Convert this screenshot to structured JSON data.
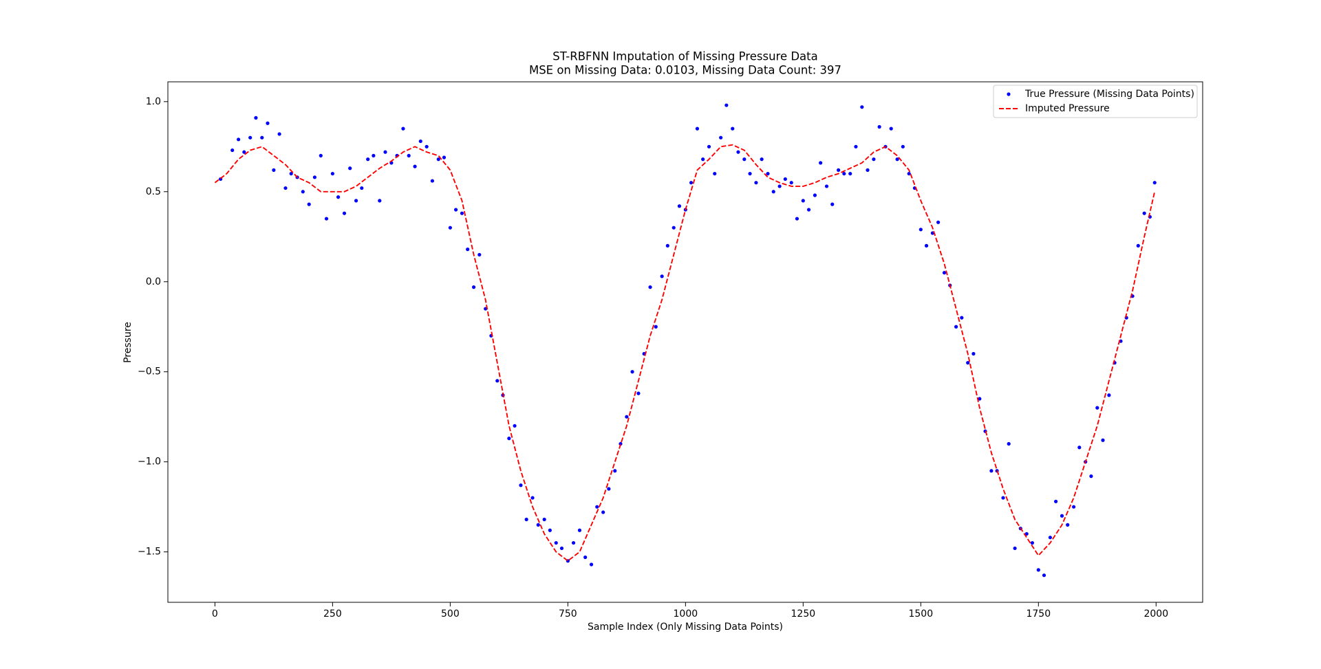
{
  "chart_data": {
    "type": "line",
    "title": "ST-RBFNN Imputation of Missing Pressure Data",
    "subtitle": "MSE on Missing Data: 0.0103, Missing Data Count: 397",
    "x_label": "Sample Index (Only Missing Data Points)",
    "y_label": "Pressure",
    "xlim": [
      -100,
      2099
    ],
    "ylim": [
      -1.78,
      1.11
    ],
    "xticks": [
      0,
      250,
      500,
      750,
      1000,
      1250,
      1500,
      1750,
      2000
    ],
    "yticks": [
      {
        "value": -1.5,
        "label": "−1.5"
      },
      {
        "value": -1.0,
        "label": "−1.0"
      },
      {
        "value": -0.5,
        "label": "−0.5"
      },
      {
        "value": 0.0,
        "label": "0.0"
      },
      {
        "value": 0.5,
        "label": "0.5"
      },
      {
        "value": 1.0,
        "label": "1.0"
      }
    ],
    "grid": false,
    "legend": "upper right",
    "series": [
      {
        "name": "True Pressure (Missing Data Points)",
        "color": "#0000ff",
        "type": "scatter",
        "x": [
          12,
          37,
          50,
          62,
          75,
          87,
          100,
          112,
          125,
          137,
          150,
          162,
          175,
          187,
          200,
          212,
          225,
          237,
          250,
          262,
          275,
          287,
          300,
          312,
          325,
          337,
          350,
          362,
          375,
          387,
          400,
          412,
          425,
          437,
          450,
          462,
          475,
          487,
          500,
          512,
          525,
          537,
          550,
          562,
          575,
          587,
          600,
          612,
          625,
          637,
          650,
          662,
          675,
          687,
          700,
          712,
          725,
          737,
          750,
          762,
          775,
          787,
          800,
          812,
          825,
          837,
          850,
          862,
          875,
          887,
          900,
          912,
          925,
          937,
          950,
          962,
          975,
          987,
          1000,
          1012,
          1025,
          1037,
          1050,
          1062,
          1075,
          1087,
          1100,
          1112,
          1125,
          1137,
          1150,
          1162,
          1175,
          1187,
          1200,
          1212,
          1225,
          1237,
          1250,
          1262,
          1275,
          1287,
          1300,
          1312,
          1325,
          1337,
          1350,
          1362,
          1375,
          1387,
          1400,
          1412,
          1425,
          1437,
          1450,
          1462,
          1475,
          1487,
          1500,
          1512,
          1525,
          1537,
          1550,
          1562,
          1575,
          1587,
          1600,
          1612,
          1625,
          1637,
          1650,
          1662,
          1675,
          1687,
          1700,
          1712,
          1725,
          1737,
          1750,
          1762,
          1775,
          1787,
          1800,
          1812,
          1825,
          1837,
          1850,
          1862,
          1875,
          1887,
          1900,
          1912,
          1925,
          1937,
          1950,
          1962,
          1975,
          1987,
          1997
        ],
        "values": [
          0.57,
          0.73,
          0.79,
          0.72,
          0.8,
          0.91,
          0.8,
          0.88,
          0.62,
          0.82,
          0.52,
          0.6,
          0.58,
          0.5,
          0.43,
          0.58,
          0.7,
          0.35,
          0.6,
          0.47,
          0.38,
          0.63,
          0.45,
          0.52,
          0.68,
          0.7,
          0.45,
          0.72,
          0.66,
          0.7,
          0.85,
          0.7,
          0.64,
          0.78,
          0.75,
          0.56,
          0.68,
          0.69,
          0.3,
          0.4,
          0.38,
          0.18,
          -0.03,
          0.15,
          -0.15,
          -0.3,
          -0.55,
          -0.63,
          -0.87,
          -0.8,
          -1.13,
          -1.32,
          -1.2,
          -1.35,
          -1.32,
          -1.38,
          -1.45,
          -1.48,
          -1.55,
          -1.45,
          -1.38,
          -1.53,
          -1.57,
          -1.25,
          -1.28,
          -1.15,
          -1.05,
          -0.9,
          -0.75,
          -0.5,
          -0.62,
          -0.4,
          -0.03,
          -0.25,
          0.03,
          0.2,
          0.3,
          0.42,
          0.4,
          0.55,
          0.85,
          0.68,
          0.75,
          0.6,
          0.8,
          0.98,
          0.85,
          0.72,
          0.68,
          0.6,
          0.55,
          0.68,
          0.6,
          0.5,
          0.53,
          0.57,
          0.55,
          0.35,
          0.45,
          0.4,
          0.48,
          0.66,
          0.53,
          0.43,
          0.62,
          0.6,
          0.6,
          0.75,
          0.97,
          0.62,
          0.68,
          0.86,
          0.75,
          0.85,
          0.68,
          0.75,
          0.6,
          0.52,
          0.29,
          0.2,
          0.27,
          0.33,
          0.05,
          -0.02,
          -0.25,
          -0.2,
          -0.45,
          -0.4,
          -0.65,
          -0.83,
          -1.05,
          -1.05,
          -1.2,
          -0.9,
          -1.48,
          -1.37,
          -1.4,
          -1.45,
          -1.6,
          -1.63,
          -1.42,
          -1.22,
          -1.3,
          -1.35,
          -1.25,
          -0.92,
          -1.0,
          -1.08,
          -0.7,
          -0.88,
          -0.63,
          -0.45,
          -0.33,
          -0.2,
          -0.08,
          0.2,
          0.38,
          0.36,
          0.55
        ]
      },
      {
        "name": "Imputed Pressure",
        "color": "#ff0000",
        "type": "line",
        "x": [
          0,
          25,
          50,
          75,
          100,
          125,
          150,
          175,
          200,
          225,
          250,
          275,
          300,
          325,
          350,
          375,
          400,
          425,
          450,
          475,
          500,
          525,
          550,
          575,
          600,
          625,
          650,
          675,
          700,
          725,
          750,
          775,
          800,
          825,
          850,
          875,
          900,
          925,
          950,
          975,
          1000,
          1025,
          1050,
          1075,
          1100,
          1125,
          1150,
          1175,
          1200,
          1225,
          1250,
          1275,
          1300,
          1325,
          1350,
          1375,
          1400,
          1425,
          1450,
          1475,
          1500,
          1525,
          1550,
          1575,
          1600,
          1625,
          1650,
          1675,
          1700,
          1725,
          1750,
          1775,
          1800,
          1825,
          1850,
          1875,
          1900,
          1925,
          1950,
          1975,
          1997
        ],
        "values": [
          0.55,
          0.6,
          0.68,
          0.73,
          0.75,
          0.7,
          0.65,
          0.58,
          0.55,
          0.5,
          0.5,
          0.5,
          0.53,
          0.58,
          0.63,
          0.67,
          0.72,
          0.75,
          0.72,
          0.7,
          0.62,
          0.45,
          0.15,
          -0.1,
          -0.45,
          -0.8,
          -1.05,
          -1.25,
          -1.4,
          -1.5,
          -1.55,
          -1.5,
          -1.35,
          -1.2,
          -1.0,
          -0.8,
          -0.55,
          -0.3,
          -0.1,
          0.15,
          0.4,
          0.62,
          0.68,
          0.75,
          0.76,
          0.73,
          0.65,
          0.58,
          0.55,
          0.53,
          0.53,
          0.55,
          0.58,
          0.6,
          0.63,
          0.66,
          0.72,
          0.75,
          0.7,
          0.62,
          0.45,
          0.3,
          0.1,
          -0.15,
          -0.4,
          -0.7,
          -0.95,
          -1.15,
          -1.32,
          -1.42,
          -1.52,
          -1.45,
          -1.35,
          -1.2,
          -1.0,
          -0.8,
          -0.55,
          -0.3,
          -0.05,
          0.25,
          0.5
        ]
      }
    ]
  }
}
